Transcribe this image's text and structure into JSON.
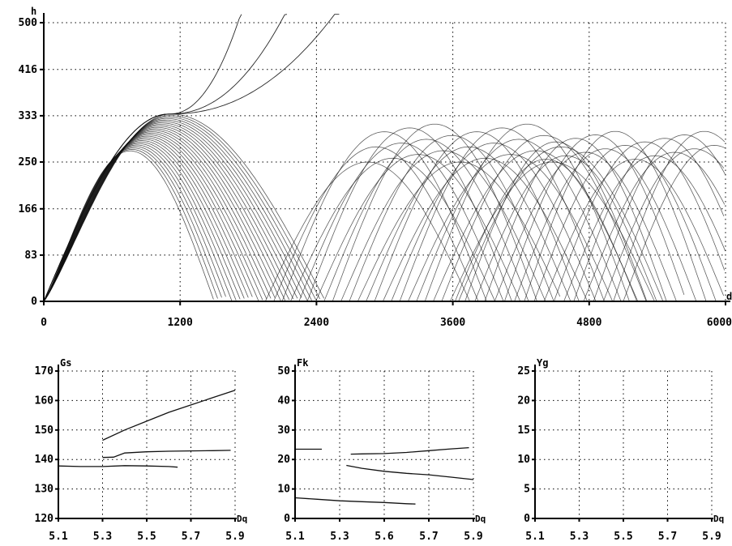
{
  "chart_data": [
    {
      "type": "line",
      "ylabel": "h",
      "xlabel": "d",
      "xlim": [
        0,
        6000
      ],
      "ylim": [
        0,
        500
      ],
      "x_ticks": [
        0,
        1200,
        2400,
        3600,
        4800,
        6000
      ],
      "x_tick_labels": [
        "0",
        "1200",
        "2400",
        "3600",
        "4800",
        "6000"
      ],
      "y_ticks": [
        0,
        83,
        166,
        250,
        333,
        416,
        500
      ],
      "y_tick_labels": [
        "0",
        "83",
        "166",
        "250",
        "333",
        "416",
        "500"
      ],
      "grid": true,
      "families": [
        {
          "kind": "rising",
          "count": 3,
          "x_range": [
            0,
            3000
          ],
          "apex": [
            1100,
            336
          ],
          "ends": [
            1750,
            2150,
            2600
          ]
        },
        {
          "kind": "group1",
          "count": 26,
          "start_x": 0,
          "peak_x_range": [
            760,
            1120
          ],
          "peak_h_range": [
            270,
            336
          ],
          "end_x_range": [
            1500,
            2480
          ]
        },
        {
          "kind": "group2",
          "count": 24,
          "start_x_range": [
            1950,
            3650
          ],
          "width": 1800,
          "peak_h_range": [
            250,
            318
          ]
        },
        {
          "kind": "group3",
          "count": 18,
          "start_x_range": [
            3620,
            5100
          ],
          "width": 1600,
          "peak_h_range": [
            255,
            305
          ]
        }
      ]
    },
    {
      "type": "line",
      "ylabel": "Gs",
      "xlabel": "Dq",
      "ylim": [
        120,
        170
      ],
      "xlim": [
        5.1,
        5.9
      ],
      "x_tick_labels": [
        "5.1",
        "5.3",
        "5.5",
        "5.7",
        "5.9"
      ],
      "y_tick_labels": [
        "120",
        "130",
        "140",
        "150",
        "160",
        "170"
      ],
      "grid": true,
      "series": [
        {
          "x": [
            5.1,
            5.2,
            5.3,
            5.4,
            5.5,
            5.6,
            5.64
          ],
          "y": [
            137.8,
            137.6,
            137.6,
            137.9,
            137.8,
            137.6,
            137.4
          ]
        },
        {
          "x": [
            5.3,
            5.35,
            5.4,
            5.5,
            5.6,
            5.7,
            5.8,
            5.88
          ],
          "y": [
            140.7,
            140.8,
            142.2,
            142.6,
            142.8,
            142.9,
            143.0,
            143.1
          ]
        },
        {
          "x": [
            5.3,
            5.4,
            5.5,
            5.6,
            5.7,
            5.8,
            5.9
          ],
          "y": [
            146.5,
            150.0,
            153.0,
            156.0,
            158.5,
            161.0,
            163.5
          ]
        }
      ]
    },
    {
      "type": "line",
      "ylabel": "Fk",
      "xlabel": "Dq",
      "ylim": [
        0,
        50
      ],
      "xlim": [
        5.1,
        5.9
      ],
      "x_tick_labels": [
        "5.1",
        "5.3",
        "5.6",
        "5.7",
        "5.9"
      ],
      "y_tick_labels": [
        "0",
        "10",
        "20",
        "30",
        "40",
        "50"
      ],
      "grid": true,
      "series": [
        {
          "x": [
            5.1,
            5.2,
            5.3,
            5.4,
            5.5,
            5.6,
            5.64
          ],
          "y": [
            7.0,
            6.5,
            6.0,
            5.7,
            5.4,
            5.0,
            4.9
          ]
        },
        {
          "x": [
            5.1,
            5.22
          ],
          "y": [
            23.5,
            23.5
          ]
        },
        {
          "x": [
            5.35,
            5.4,
            5.5,
            5.6,
            5.7,
            5.8,
            5.88
          ],
          "y": [
            21.8,
            21.9,
            22.0,
            22.4,
            23.0,
            23.6,
            24.0
          ]
        },
        {
          "x": [
            5.33,
            5.4,
            5.5,
            5.6,
            5.7,
            5.8,
            5.9
          ],
          "y": [
            18.0,
            17.0,
            16.0,
            15.3,
            14.8,
            14.0,
            13.2
          ]
        }
      ]
    },
    {
      "type": "line",
      "ylabel": "Yg",
      "xlabel": "Dq",
      "ylim": [
        0,
        25
      ],
      "xlim": [
        5.1,
        5.9
      ],
      "x_tick_labels": [
        "5.1",
        "5.3",
        "5.5",
        "5.7",
        "5.9"
      ],
      "y_tick_labels": [
        "0",
        "5",
        "10",
        "15",
        "20",
        "25"
      ],
      "grid": true,
      "series": []
    }
  ]
}
